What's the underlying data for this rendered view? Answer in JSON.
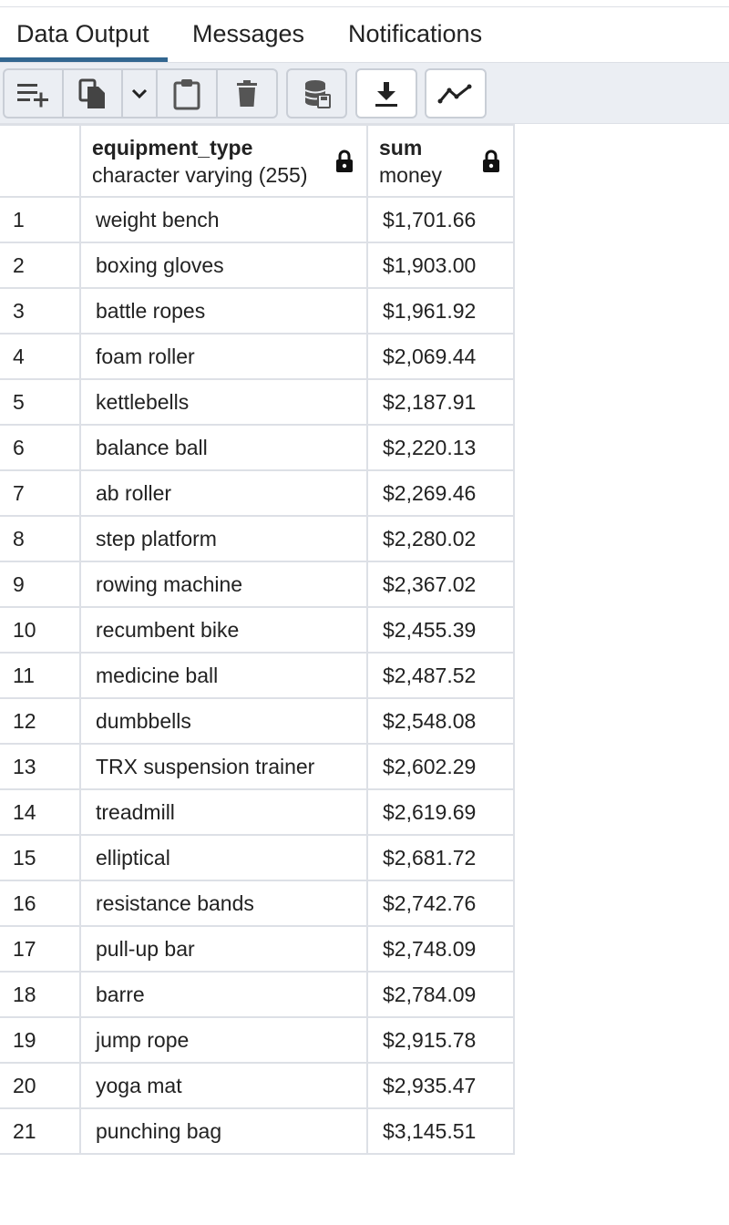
{
  "tabs": [
    {
      "label": "Data Output",
      "active": true
    },
    {
      "label": "Messages",
      "active": false
    },
    {
      "label": "Notifications",
      "active": false
    }
  ],
  "toolbar": {
    "buttons": [
      {
        "icon": "add-row-icon"
      },
      {
        "icon": "copy-icon"
      },
      {
        "icon": "chevron-down-icon"
      },
      {
        "icon": "paste-icon"
      },
      {
        "icon": "delete-icon"
      },
      {
        "icon": "save-data-icon"
      },
      {
        "icon": "download-icon"
      },
      {
        "icon": "graph-icon"
      }
    ]
  },
  "grid": {
    "columns": [
      {
        "name": "equipment_type",
        "type": "character varying (255)"
      },
      {
        "name": "sum",
        "type": "money"
      }
    ],
    "rows": [
      [
        "1",
        "weight bench",
        "$1,701.66"
      ],
      [
        "2",
        "boxing gloves",
        "$1,903.00"
      ],
      [
        "3",
        "battle ropes",
        "$1,961.92"
      ],
      [
        "4",
        "foam roller",
        "$2,069.44"
      ],
      [
        "5",
        "kettlebells",
        "$2,187.91"
      ],
      [
        "6",
        "balance ball",
        "$2,220.13"
      ],
      [
        "7",
        "ab roller",
        "$2,269.46"
      ],
      [
        "8",
        "step platform",
        "$2,280.02"
      ],
      [
        "9",
        "rowing machine",
        "$2,367.02"
      ],
      [
        "10",
        "recumbent bike",
        "$2,455.39"
      ],
      [
        "11",
        "medicine ball",
        "$2,487.52"
      ],
      [
        "12",
        "dumbbells",
        "$2,548.08"
      ],
      [
        "13",
        "TRX suspension trainer",
        "$2,602.29"
      ],
      [
        "14",
        "treadmill",
        "$2,619.69"
      ],
      [
        "15",
        "elliptical",
        "$2,681.72"
      ],
      [
        "16",
        "resistance bands",
        "$2,742.76"
      ],
      [
        "17",
        "pull-up bar",
        "$2,748.09"
      ],
      [
        "18",
        "barre",
        "$2,784.09"
      ],
      [
        "19",
        "jump rope",
        "$2,915.78"
      ],
      [
        "20",
        "yoga mat",
        "$2,935.47"
      ],
      [
        "21",
        "punching bag",
        "$3,145.51"
      ]
    ]
  },
  "colors": {
    "accent": "#326690",
    "toolbar_bg": "#ebeef3",
    "border": "#dde0e6"
  }
}
